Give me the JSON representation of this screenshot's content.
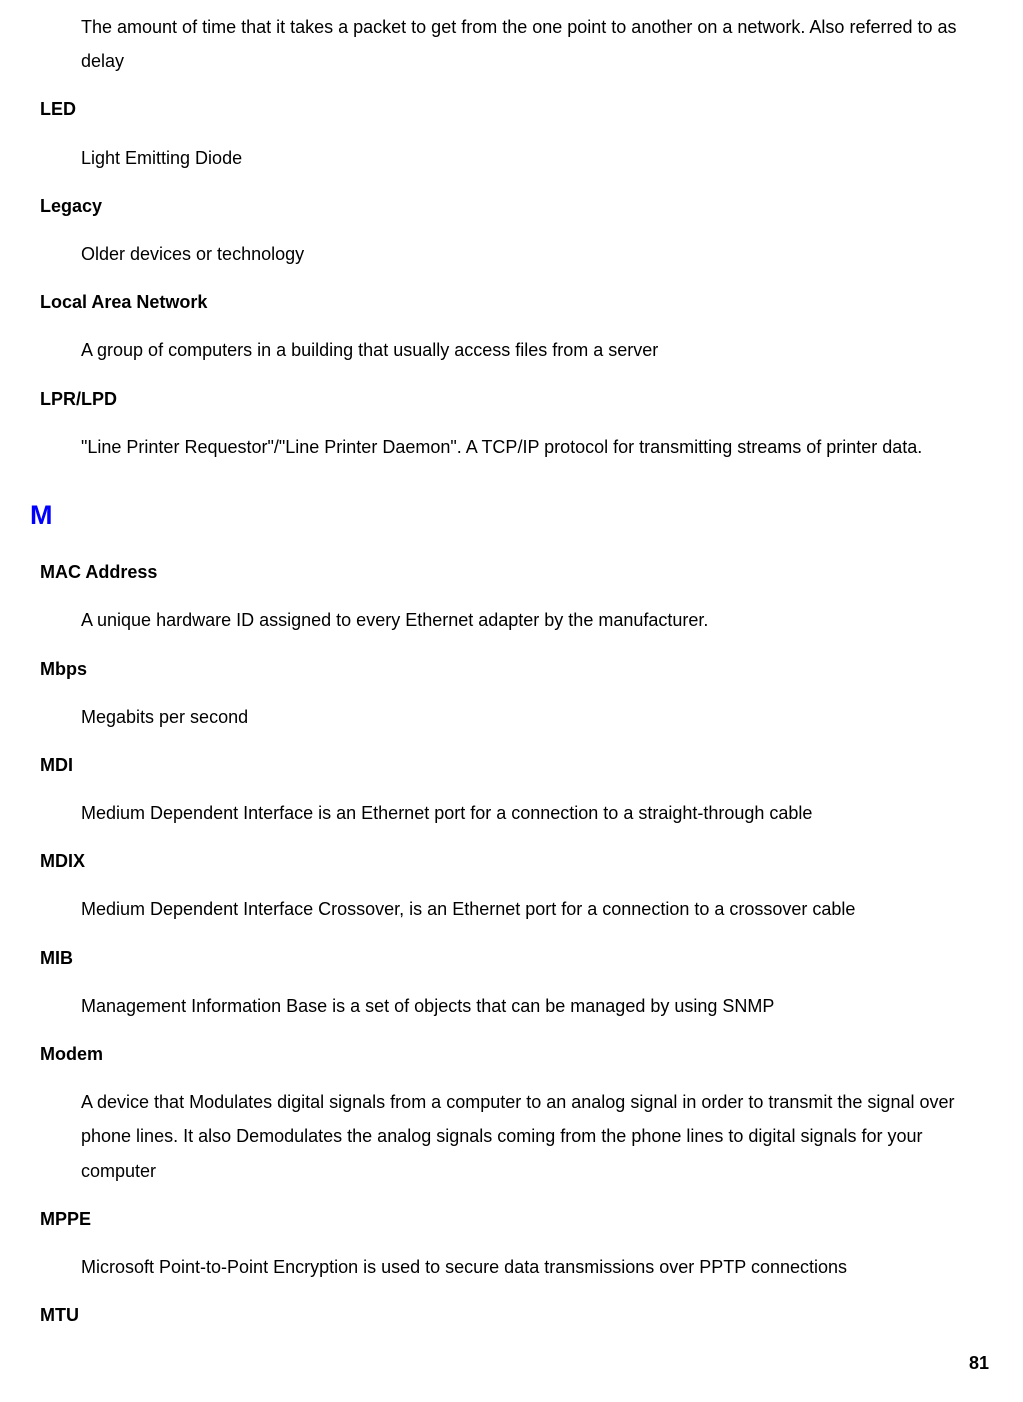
{
  "colors": {
    "text": "#000000",
    "section_letter": "#0000ff",
    "background": "#ffffff"
  },
  "typography": {
    "body_font": "Arial, Helvetica, sans-serif",
    "body_fontsize": 18,
    "section_letter_fontsize": 27,
    "line_height": 1.9
  },
  "page_number": "81",
  "sections": [
    {
      "initial_definition": "The amount of time that it takes a packet to get from the one point to another on a network. Also referred to as delay",
      "entries": [
        {
          "term": "LED",
          "definition": "Light Emitting Diode"
        },
        {
          "term": "Legacy",
          "definition": "Older devices or technology"
        },
        {
          "term": "Local Area Network",
          "definition": "A group of computers in a building that usually access files from a server"
        },
        {
          "term": "LPR/LPD",
          "definition": "\"Line Printer Requestor\"/\"Line Printer Daemon\". A TCP/IP protocol for transmitting streams of printer data."
        }
      ]
    },
    {
      "letter": "M",
      "entries": [
        {
          "term": "MAC Address",
          "definition": "A unique hardware ID assigned to every Ethernet adapter by the manufacturer."
        },
        {
          "term": "Mbps",
          "definition": "Megabits per second"
        },
        {
          "term": "MDI",
          "definition": "Medium Dependent Interface is an Ethernet port for a connection to a straight-through cable"
        },
        {
          "term": "MDIX",
          "definition": "Medium Dependent Interface Crossover, is an Ethernet port for a connection to a crossover cable"
        },
        {
          "term": "MIB",
          "definition": "Management Information Base is a set of objects that can be managed by using SNMP"
        },
        {
          "term": "Modem",
          "definition": "A device that Modulates digital signals from a computer to an analog signal in order to transmit the signal over phone lines. It also Demodulates the analog signals coming from the phone lines to digital signals for your computer"
        },
        {
          "term": "MPPE",
          "definition": "Microsoft Point-to-Point Encryption is used to secure data transmissions over PPTP connections"
        },
        {
          "term": "MTU",
          "definition": ""
        }
      ]
    }
  ]
}
